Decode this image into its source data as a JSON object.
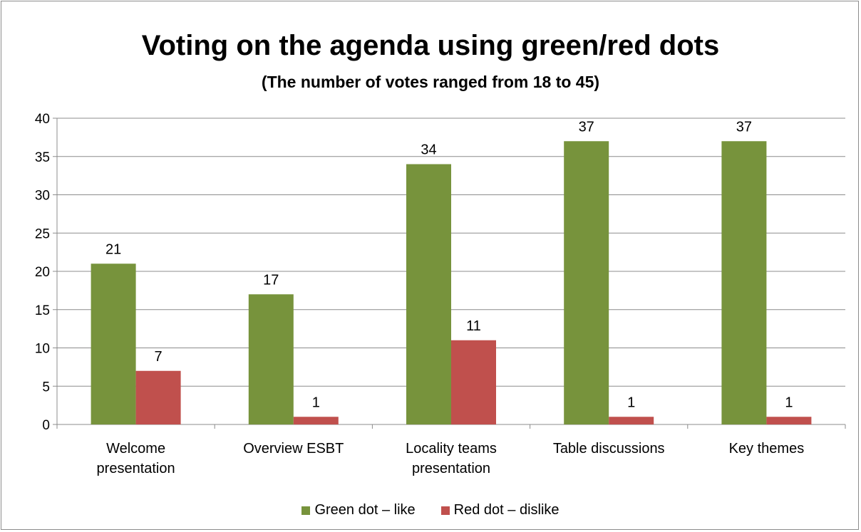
{
  "chart_data": {
    "type": "bar",
    "title": "Voting on the agenda using green/red dots",
    "subtitle": "(The number of votes ranged from 18 to 45)",
    "categories": [
      [
        "Welcome",
        "presentation"
      ],
      [
        "Overview ESBT"
      ],
      [
        "Locality teams",
        "presentation"
      ],
      [
        "Table discussions"
      ],
      [
        "Key themes"
      ]
    ],
    "series": [
      {
        "name": "Green dot – like",
        "color": "#77933c",
        "values": [
          21,
          17,
          34,
          37,
          37
        ]
      },
      {
        "name": "Red dot – dislike",
        "color": "#c0504d",
        "values": [
          7,
          1,
          11,
          1,
          1
        ]
      }
    ],
    "ylim": [
      0,
      40
    ],
    "yticks": [
      0,
      5,
      10,
      15,
      20,
      25,
      30,
      35,
      40
    ],
    "grid": true,
    "legend_position": "bottom"
  }
}
